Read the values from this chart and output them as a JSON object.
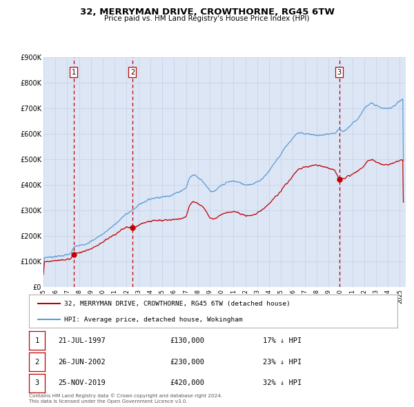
{
  "title": "32, MERRYMAN DRIVE, CROWTHORNE, RG45 6TW",
  "subtitle": "Price paid vs. HM Land Registry's House Price Index (HPI)",
  "xlim": [
    1995.0,
    2025.5
  ],
  "ylim": [
    0,
    900000
  ],
  "yticks": [
    0,
    100000,
    200000,
    300000,
    400000,
    500000,
    600000,
    700000,
    800000,
    900000
  ],
  "ytick_labels": [
    "£0",
    "£100K",
    "£200K",
    "£300K",
    "£400K",
    "£500K",
    "£600K",
    "£700K",
    "£800K",
    "£900K"
  ],
  "xticks": [
    1995,
    1996,
    1997,
    1998,
    1999,
    2000,
    2001,
    2002,
    2003,
    2004,
    2005,
    2006,
    2007,
    2008,
    2009,
    2010,
    2011,
    2012,
    2013,
    2014,
    2015,
    2016,
    2017,
    2018,
    2019,
    2020,
    2021,
    2022,
    2023,
    2024,
    2025
  ],
  "hpi_color": "#5b9bd5",
  "price_color": "#c00000",
  "vline_color": "#c00000",
  "grid_color": "#c8d4e8",
  "background_color": "#ffffff",
  "plot_bg_color": "#dce6f5",
  "purchases": [
    {
      "label": "1",
      "date": 1997.55,
      "price": 130000
    },
    {
      "label": "2",
      "date": 2002.49,
      "price": 230000
    },
    {
      "label": "3",
      "date": 2019.9,
      "price": 420000
    }
  ],
  "purchase_dates_display": [
    "21-JUL-1997",
    "26-JUN-2002",
    "25-NOV-2019"
  ],
  "purchase_prices_display": [
    "£130,000",
    "£230,000",
    "£420,000"
  ],
  "purchase_hpi_display": [
    "17% ↓ HPI",
    "23% ↓ HPI",
    "32% ↓ HPI"
  ],
  "legend_label_price": "32, MERRYMAN DRIVE, CROWTHORNE, RG45 6TW (detached house)",
  "legend_label_hpi": "HPI: Average price, detached house, Wokingham",
  "footer1": "Contains HM Land Registry data © Crown copyright and database right 2024.",
  "footer2": "This data is licensed under the Open Government Licence v3.0.",
  "hpi_anchors": [
    [
      1995.0,
      115000
    ],
    [
      1995.5,
      117000
    ],
    [
      1996.0,
      119000
    ],
    [
      1996.5,
      122000
    ],
    [
      1997.0,
      126000
    ],
    [
      1997.3,
      130000
    ],
    [
      1997.55,
      157000
    ],
    [
      1998.0,
      162000
    ],
    [
      1998.5,
      168000
    ],
    [
      1999.0,
      178000
    ],
    [
      1999.5,
      193000
    ],
    [
      2000.0,
      208000
    ],
    [
      2000.5,
      226000
    ],
    [
      2001.0,
      244000
    ],
    [
      2001.5,
      266000
    ],
    [
      2002.0,
      288000
    ],
    [
      2002.49,
      300000
    ],
    [
      2002.8,
      312000
    ],
    [
      2003.0,
      322000
    ],
    [
      2003.5,
      334000
    ],
    [
      2004.0,
      345000
    ],
    [
      2004.5,
      350000
    ],
    [
      2005.0,
      352000
    ],
    [
      2005.5,
      356000
    ],
    [
      2006.0,
      364000
    ],
    [
      2006.5,
      375000
    ],
    [
      2007.0,
      387000
    ],
    [
      2007.3,
      430000
    ],
    [
      2007.7,
      440000
    ],
    [
      2008.0,
      430000
    ],
    [
      2008.5,
      408000
    ],
    [
      2009.0,
      378000
    ],
    [
      2009.3,
      370000
    ],
    [
      2009.6,
      382000
    ],
    [
      2010.0,
      398000
    ],
    [
      2010.5,
      410000
    ],
    [
      2011.0,
      415000
    ],
    [
      2011.5,
      408000
    ],
    [
      2012.0,
      400000
    ],
    [
      2012.5,
      402000
    ],
    [
      2013.0,
      410000
    ],
    [
      2013.5,
      428000
    ],
    [
      2014.0,
      455000
    ],
    [
      2014.5,
      490000
    ],
    [
      2015.0,
      520000
    ],
    [
      2015.3,
      546000
    ],
    [
      2015.6,
      560000
    ],
    [
      2016.0,
      585000
    ],
    [
      2016.3,
      598000
    ],
    [
      2016.6,
      603000
    ],
    [
      2017.0,
      600000
    ],
    [
      2017.5,
      598000
    ],
    [
      2018.0,
      592000
    ],
    [
      2018.5,
      594000
    ],
    [
      2019.0,
      598000
    ],
    [
      2019.5,
      600000
    ],
    [
      2019.9,
      618000
    ],
    [
      2020.0,
      612000
    ],
    [
      2020.3,
      608000
    ],
    [
      2020.6,
      622000
    ],
    [
      2021.0,
      638000
    ],
    [
      2021.3,
      652000
    ],
    [
      2021.6,
      668000
    ],
    [
      2022.0,
      698000
    ],
    [
      2022.3,
      715000
    ],
    [
      2022.6,
      718000
    ],
    [
      2023.0,
      710000
    ],
    [
      2023.3,
      704000
    ],
    [
      2023.6,
      698000
    ],
    [
      2024.0,
      698000
    ],
    [
      2024.3,
      704000
    ],
    [
      2024.6,
      712000
    ],
    [
      2025.0,
      728000
    ],
    [
      2025.3,
      738000
    ]
  ],
  "price_anchors": [
    [
      1995.0,
      98000
    ],
    [
      1995.5,
      100000
    ],
    [
      1996.0,
      102000
    ],
    [
      1996.5,
      105000
    ],
    [
      1997.0,
      108000
    ],
    [
      1997.3,
      112000
    ],
    [
      1997.55,
      130000
    ],
    [
      1998.0,
      134000
    ],
    [
      1998.5,
      140000
    ],
    [
      1999.0,
      150000
    ],
    [
      1999.5,
      163000
    ],
    [
      2000.0,
      176000
    ],
    [
      2000.5,
      191000
    ],
    [
      2001.0,
      205000
    ],
    [
      2001.5,
      220000
    ],
    [
      2002.0,
      235000
    ],
    [
      2002.49,
      230000
    ],
    [
      2002.8,
      236000
    ],
    [
      2003.0,
      244000
    ],
    [
      2003.5,
      252000
    ],
    [
      2004.0,
      258000
    ],
    [
      2004.5,
      260000
    ],
    [
      2005.0,
      260000
    ],
    [
      2005.5,
      262000
    ],
    [
      2006.0,
      264000
    ],
    [
      2006.5,
      268000
    ],
    [
      2007.0,
      274000
    ],
    [
      2007.3,
      320000
    ],
    [
      2007.6,
      335000
    ],
    [
      2008.0,
      328000
    ],
    [
      2008.5,
      310000
    ],
    [
      2009.0,
      272000
    ],
    [
      2009.3,
      265000
    ],
    [
      2009.6,
      272000
    ],
    [
      2010.0,
      285000
    ],
    [
      2010.5,
      292000
    ],
    [
      2011.0,
      296000
    ],
    [
      2011.5,
      288000
    ],
    [
      2012.0,
      278000
    ],
    [
      2012.5,
      280000
    ],
    [
      2013.0,
      290000
    ],
    [
      2013.5,
      306000
    ],
    [
      2014.0,
      326000
    ],
    [
      2014.5,
      352000
    ],
    [
      2015.0,
      376000
    ],
    [
      2015.3,
      398000
    ],
    [
      2015.6,
      412000
    ],
    [
      2016.0,
      436000
    ],
    [
      2016.3,
      455000
    ],
    [
      2016.6,
      464000
    ],
    [
      2017.0,
      468000
    ],
    [
      2017.5,
      474000
    ],
    [
      2018.0,
      476000
    ],
    [
      2018.5,
      472000
    ],
    [
      2019.0,
      464000
    ],
    [
      2019.5,
      458000
    ],
    [
      2019.9,
      420000
    ],
    [
      2020.0,
      422000
    ],
    [
      2020.3,
      426000
    ],
    [
      2020.6,
      432000
    ],
    [
      2021.0,
      440000
    ],
    [
      2021.3,
      448000
    ],
    [
      2021.6,
      458000
    ],
    [
      2022.0,
      476000
    ],
    [
      2022.3,
      494000
    ],
    [
      2022.6,
      498000
    ],
    [
      2023.0,
      490000
    ],
    [
      2023.3,
      482000
    ],
    [
      2023.6,
      478000
    ],
    [
      2024.0,
      478000
    ],
    [
      2024.3,
      482000
    ],
    [
      2024.6,
      488000
    ],
    [
      2025.0,
      494000
    ],
    [
      2025.3,
      498000
    ]
  ]
}
